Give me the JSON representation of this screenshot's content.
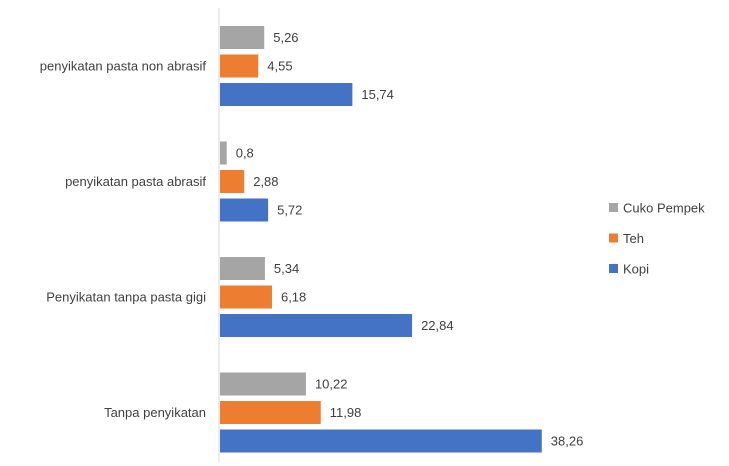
{
  "chart_data": {
    "type": "bar",
    "orientation": "horizontal",
    "categories": [
      "penyikatan pasta non abrasif",
      "penyikatan pasta abrasif",
      "Penyikatan tanpa pasta gigi",
      "Tanpa penyikatan"
    ],
    "series": [
      {
        "name": "Cuko Pempek",
        "color": "#a5a5a5",
        "values": [
          5.26,
          0.8,
          5.34,
          10.22
        ],
        "labels": [
          "5,26",
          "0,8",
          "5,34",
          "10,22"
        ]
      },
      {
        "name": "Teh",
        "color": "#ed7d31",
        "values": [
          4.55,
          2.88,
          6.18,
          11.98
        ],
        "labels": [
          "4,55",
          "2,88",
          "6,18",
          "11,98"
        ]
      },
      {
        "name": "Kopi",
        "color": "#4472c4",
        "values": [
          15.74,
          5.72,
          22.84,
          38.26
        ],
        "labels": [
          "15,74",
          "5,72",
          "22,84",
          "38,26"
        ]
      }
    ],
    "title": "",
    "xlabel": "",
    "ylabel": "",
    "xlim": [
      0,
      40
    ],
    "grid": false,
    "legend": "right"
  }
}
